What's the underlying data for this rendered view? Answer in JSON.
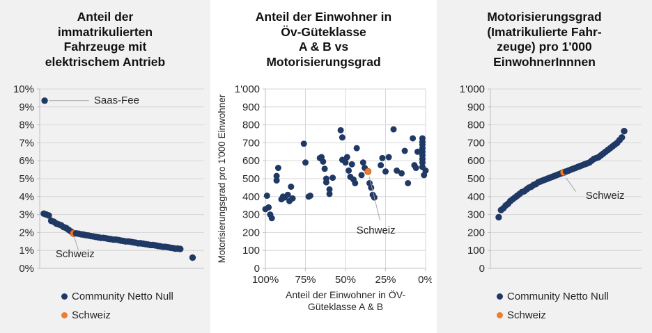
{
  "colors": {
    "navy": "#1f3864",
    "orange": "#ed7d31",
    "orange_stroke": "#c55a11",
    "grid": "#d6d6d6",
    "axis": "#bfbfbf",
    "tick_text": "#262626",
    "annotation_line": "#a6a6a6",
    "annotation_text": "#262626",
    "title_text": "#111111",
    "panel_gray": "#f1f1f1",
    "panel_white": "#ffffff"
  },
  "chart_data": [
    {
      "type": "scatter",
      "title_lines": [
        "Anteil der",
        "immatrikulierten",
        "Fahrzeuge mit",
        "elektrischem Antrieb"
      ],
      "ylim": [
        0,
        10
      ],
      "xlim": [
        0,
        1
      ],
      "grid": "horizontal",
      "y_ticks": [
        {
          "v": 10,
          "label": "10%"
        },
        {
          "v": 9,
          "label": "9%"
        },
        {
          "v": 8,
          "label": "8%"
        },
        {
          "v": 7,
          "label": "7%"
        },
        {
          "v": 6,
          "label": "6%"
        },
        {
          "v": 5,
          "label": "5%"
        },
        {
          "v": 4,
          "label": "4%"
        },
        {
          "v": 3,
          "label": "3%"
        },
        {
          "v": 2,
          "label": "2%"
        },
        {
          "v": 1,
          "label": "1%"
        },
        {
          "v": 0,
          "label": "0%"
        }
      ],
      "x_ticks": [],
      "series": {
        "name": "Community Netto Null",
        "color_key": "navy",
        "x_start": 0.025,
        "x_end": 0.855,
        "values": [
          3.05,
          3.0,
          2.95,
          2.65,
          2.6,
          2.5,
          2.45,
          2.4,
          2.3,
          2.25,
          2.15,
          2.05,
          1.95,
          1.95,
          1.93,
          1.9,
          1.88,
          1.85,
          1.83,
          1.8,
          1.78,
          1.75,
          1.73,
          1.7,
          1.7,
          1.68,
          1.65,
          1.63,
          1.6,
          1.6,
          1.58,
          1.55,
          1.53,
          1.5,
          1.5,
          1.48,
          1.45,
          1.43,
          1.4,
          1.4,
          1.38,
          1.35,
          1.33,
          1.3,
          1.3,
          1.28,
          1.25,
          1.23,
          1.2,
          1.2,
          1.18,
          1.15,
          1.13,
          1.1,
          1.1,
          1.08
        ]
      },
      "extra_points": [
        {
          "x": 0.03,
          "y": 9.35,
          "label": "Saas-Fee"
        },
        {
          "x": 0.93,
          "y": 0.6
        }
      ],
      "highlight": {
        "name": "Schweiz",
        "index": 12
      },
      "annotations": [
        {
          "text": "Saas-Fee",
          "tx": 0.33,
          "ty": 9.18,
          "anchor": "start",
          "line": [
            0.055,
            9.35,
            0.3,
            9.35
          ]
        },
        {
          "text": "Schweiz",
          "tx": 0.097,
          "ty": 0.62,
          "anchor": "start",
          "line": [
            0.21,
            1.75,
            0.235,
            1.02
          ]
        }
      ],
      "legend": [
        {
          "label": "Community Netto Null",
          "color_key": "navy"
        },
        {
          "label": "Schweiz",
          "color_key": "orange"
        }
      ]
    },
    {
      "type": "scatter",
      "title_lines": [
        "Anteil der Einwohner in",
        "Öv-Güteklasse",
        "A & B vs",
        "Motorisierungsgrad"
      ],
      "y_axis_label": "Motorisierungsgrad pro 1'000 Einwohner",
      "x_axis_label_lines": [
        "Anteil der Einwohner in ÖV-",
        "Güteklasse A & B"
      ],
      "ylim": [
        0,
        1000
      ],
      "xlim": [
        100,
        0
      ],
      "grid": "both",
      "y_ticks": [
        {
          "v": 1000,
          "label": "1'000"
        },
        {
          "v": 900,
          "label": "900"
        },
        {
          "v": 800,
          "label": "800"
        },
        {
          "v": 700,
          "label": "700"
        },
        {
          "v": 600,
          "label": "600"
        },
        {
          "v": 500,
          "label": "500"
        },
        {
          "v": 400,
          "label": "400"
        },
        {
          "v": 300,
          "label": "300"
        },
        {
          "v": 200,
          "label": "200"
        },
        {
          "v": 100,
          "label": "100"
        },
        {
          "v": 0,
          "label": "0"
        }
      ],
      "x_ticks": [
        {
          "v": 100,
          "label": "100%"
        },
        {
          "v": 75,
          "label": "75%"
        },
        {
          "v": 50,
          "label": "50%"
        },
        {
          "v": 25,
          "label": "25%"
        },
        {
          "v": 0,
          "label": "0%"
        }
      ],
      "series": {
        "name": "Community Netto Null",
        "color_key": "navy",
        "points": [
          [
            100,
            330
          ],
          [
            99,
            405
          ],
          [
            98,
            340
          ],
          [
            97,
            300
          ],
          [
            96,
            280
          ],
          [
            93,
            490
          ],
          [
            93,
            515
          ],
          [
            92,
            560
          ],
          [
            90,
            385
          ],
          [
            89,
            400
          ],
          [
            88,
            395
          ],
          [
            86,
            410
          ],
          [
            85,
            375
          ],
          [
            84,
            455
          ],
          [
            83,
            390
          ],
          [
            76,
            695
          ],
          [
            75,
            590
          ],
          [
            73,
            400
          ],
          [
            72,
            405
          ],
          [
            66,
            615
          ],
          [
            65,
            620
          ],
          [
            64,
            595
          ],
          [
            63,
            555
          ],
          [
            62,
            500
          ],
          [
            62,
            480
          ],
          [
            60,
            440
          ],
          [
            60,
            415
          ],
          [
            58,
            505
          ],
          [
            53,
            770
          ],
          [
            52,
            730
          ],
          [
            52,
            605
          ],
          [
            50,
            590
          ],
          [
            49,
            620
          ],
          [
            48,
            545
          ],
          [
            47,
            510
          ],
          [
            46,
            580
          ],
          [
            45,
            495
          ],
          [
            44,
            475
          ],
          [
            43,
            670
          ],
          [
            40,
            520
          ],
          [
            39,
            590
          ],
          [
            38,
            560
          ],
          [
            35,
            475
          ],
          [
            34,
            450
          ],
          [
            33,
            410
          ],
          [
            32,
            395
          ],
          [
            28,
            575
          ],
          [
            27,
            615
          ],
          [
            25,
            540
          ],
          [
            23,
            620
          ],
          [
            20,
            775
          ],
          [
            18,
            545
          ],
          [
            15,
            530
          ],
          [
            13,
            655
          ],
          [
            11,
            475
          ],
          [
            8,
            725
          ],
          [
            7,
            575
          ],
          [
            6,
            560
          ],
          [
            5,
            650
          ],
          [
            2,
            725
          ],
          [
            2,
            705
          ],
          [
            2,
            690
          ],
          [
            2,
            670
          ],
          [
            2,
            650
          ],
          [
            2,
            630
          ],
          [
            2,
            610
          ],
          [
            2,
            590
          ],
          [
            2,
            565
          ],
          [
            1,
            520
          ],
          [
            0,
            545
          ]
        ]
      },
      "highlight_point": {
        "name": "Schweiz",
        "x": 36,
        "y": 540
      },
      "annotations": [
        {
          "text": "Schweiz",
          "tx": 31,
          "ty": 193,
          "anchor": "middle",
          "line": [
            35.2,
            512,
            28.5,
            268
          ]
        }
      ],
      "legend": []
    },
    {
      "type": "scatter",
      "title_lines": [
        "Motorisierungsgrad",
        "(Imatrikulierte Fahr-",
        "zeuge) pro 1'000",
        "EinwohnerInnnen"
      ],
      "ylim": [
        0,
        1000
      ],
      "xlim": [
        0,
        1
      ],
      "grid": "horizontal",
      "y_ticks": [
        {
          "v": 1000,
          "label": "1'000"
        },
        {
          "v": 900,
          "label": "900"
        },
        {
          "v": 800,
          "label": "800"
        },
        {
          "v": 700,
          "label": "700"
        },
        {
          "v": 600,
          "label": "600"
        },
        {
          "v": 500,
          "label": "500"
        },
        {
          "v": 400,
          "label": "400"
        },
        {
          "v": 300,
          "label": "300"
        },
        {
          "v": 200,
          "label": "200"
        },
        {
          "v": 100,
          "label": "100"
        },
        {
          "v": 0,
          "label": "0"
        }
      ],
      "x_ticks": [],
      "series": {
        "name": "Community Netto Null",
        "color_key": "navy",
        "x_start": 0.055,
        "x_end": 0.885,
        "values": [
          285,
          325,
          335,
          350,
          360,
          375,
          385,
          395,
          405,
          415,
          425,
          430,
          440,
          450,
          455,
          465,
          470,
          480,
          485,
          490,
          495,
          500,
          505,
          510,
          515,
          520,
          525,
          530,
          535,
          540,
          545,
          550,
          555,
          560,
          565,
          570,
          575,
          580,
          585,
          590,
          600,
          610,
          615,
          620,
          630,
          640,
          650,
          660,
          670,
          680,
          690,
          700,
          715,
          730,
          765
        ]
      },
      "extra_points": [],
      "highlight": {
        "name": "Schweiz",
        "index": 28
      },
      "annotations": [
        {
          "text": "Schweiz",
          "tx": 0.63,
          "ty": 388,
          "anchor": "start",
          "line": [
            0.5,
            505,
            0.565,
            428
          ]
        }
      ],
      "legend": [
        {
          "label": "Community Netto Null",
          "color_key": "navy"
        },
        {
          "label": "Schweiz",
          "color_key": "orange"
        }
      ]
    }
  ]
}
